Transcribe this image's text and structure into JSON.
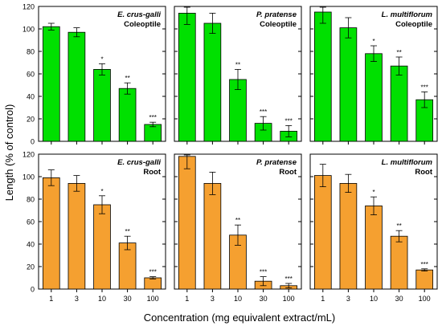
{
  "figure": {
    "ylabel": "Length  (% of control)",
    "xlabel": "Concentration (mg equivalent extract/mL)"
  },
  "colors": {
    "top": "#00e000",
    "bottom": "#f5a030",
    "axis": "#000000"
  },
  "chart_data": [
    {
      "type": "bar",
      "species": "E. crus-galli",
      "organ": "Coleoptile",
      "categories": [
        "1",
        "3",
        "10",
        "30",
        "100"
      ],
      "values": [
        102,
        97,
        64,
        47,
        15
      ],
      "errors": [
        3,
        4,
        5,
        5,
        2
      ],
      "significance": [
        "",
        "",
        "*",
        "**",
        "***"
      ],
      "ylim": [
        0,
        120
      ],
      "yticks": [
        "0",
        "20",
        "40",
        "60",
        "80",
        "100",
        "120"
      ]
    },
    {
      "type": "bar",
      "species": "P. pratense",
      "organ": "Coleoptile",
      "categories": [
        "1",
        "3",
        "10",
        "30",
        "100"
      ],
      "values": [
        114,
        105,
        55,
        16,
        9
      ],
      "errors": [
        10,
        9,
        9,
        6,
        5
      ],
      "significance": [
        "",
        "",
        "**",
        "***",
        "***"
      ],
      "ylim": [
        0,
        120
      ],
      "yticks": [
        "0",
        "20",
        "40",
        "60",
        "80",
        "100",
        "120"
      ]
    },
    {
      "type": "bar",
      "species": "L. multiflorum",
      "organ": "Coleoptile",
      "categories": [
        "1",
        "3",
        "10",
        "30",
        "100"
      ],
      "values": [
        115,
        101,
        78,
        67,
        37
      ],
      "errors": [
        10,
        9,
        7,
        8,
        7
      ],
      "significance": [
        "",
        "",
        "*",
        "**",
        "***"
      ],
      "ylim": [
        0,
        120
      ],
      "yticks": [
        "0",
        "20",
        "40",
        "60",
        "80",
        "100",
        "120"
      ]
    },
    {
      "type": "bar",
      "species": "E. crus-galli",
      "organ": "Root",
      "categories": [
        "1",
        "3",
        "10",
        "30",
        "100"
      ],
      "values": [
        99,
        94,
        75,
        41,
        10
      ],
      "errors": [
        7,
        7,
        8,
        6,
        1
      ],
      "significance": [
        "",
        "",
        "*",
        "**",
        "***"
      ],
      "ylim": [
        0,
        120
      ],
      "yticks": [
        "0",
        "20",
        "40",
        "60",
        "80",
        "100",
        "120"
      ]
    },
    {
      "type": "bar",
      "species": "P. pratense",
      "organ": "Root",
      "categories": [
        "1",
        "3",
        "10",
        "30",
        "100"
      ],
      "values": [
        118,
        94,
        48,
        7,
        3
      ],
      "errors": [
        11,
        10,
        9,
        4,
        2
      ],
      "significance": [
        "",
        "",
        "**",
        "***",
        "***"
      ],
      "ylim": [
        0,
        120
      ],
      "yticks": [
        "0",
        "20",
        "40",
        "60",
        "80",
        "100",
        "120"
      ]
    },
    {
      "type": "bar",
      "species": "L. multiflorum",
      "organ": "Root",
      "categories": [
        "1",
        "3",
        "10",
        "30",
        "100"
      ],
      "values": [
        101,
        94,
        74,
        47,
        17
      ],
      "errors": [
        10,
        8,
        8,
        5,
        1
      ],
      "significance": [
        "",
        "",
        "*",
        "**",
        "***"
      ],
      "ylim": [
        0,
        120
      ],
      "yticks": [
        "0",
        "20",
        "40",
        "60",
        "80",
        "100",
        "120"
      ]
    }
  ]
}
